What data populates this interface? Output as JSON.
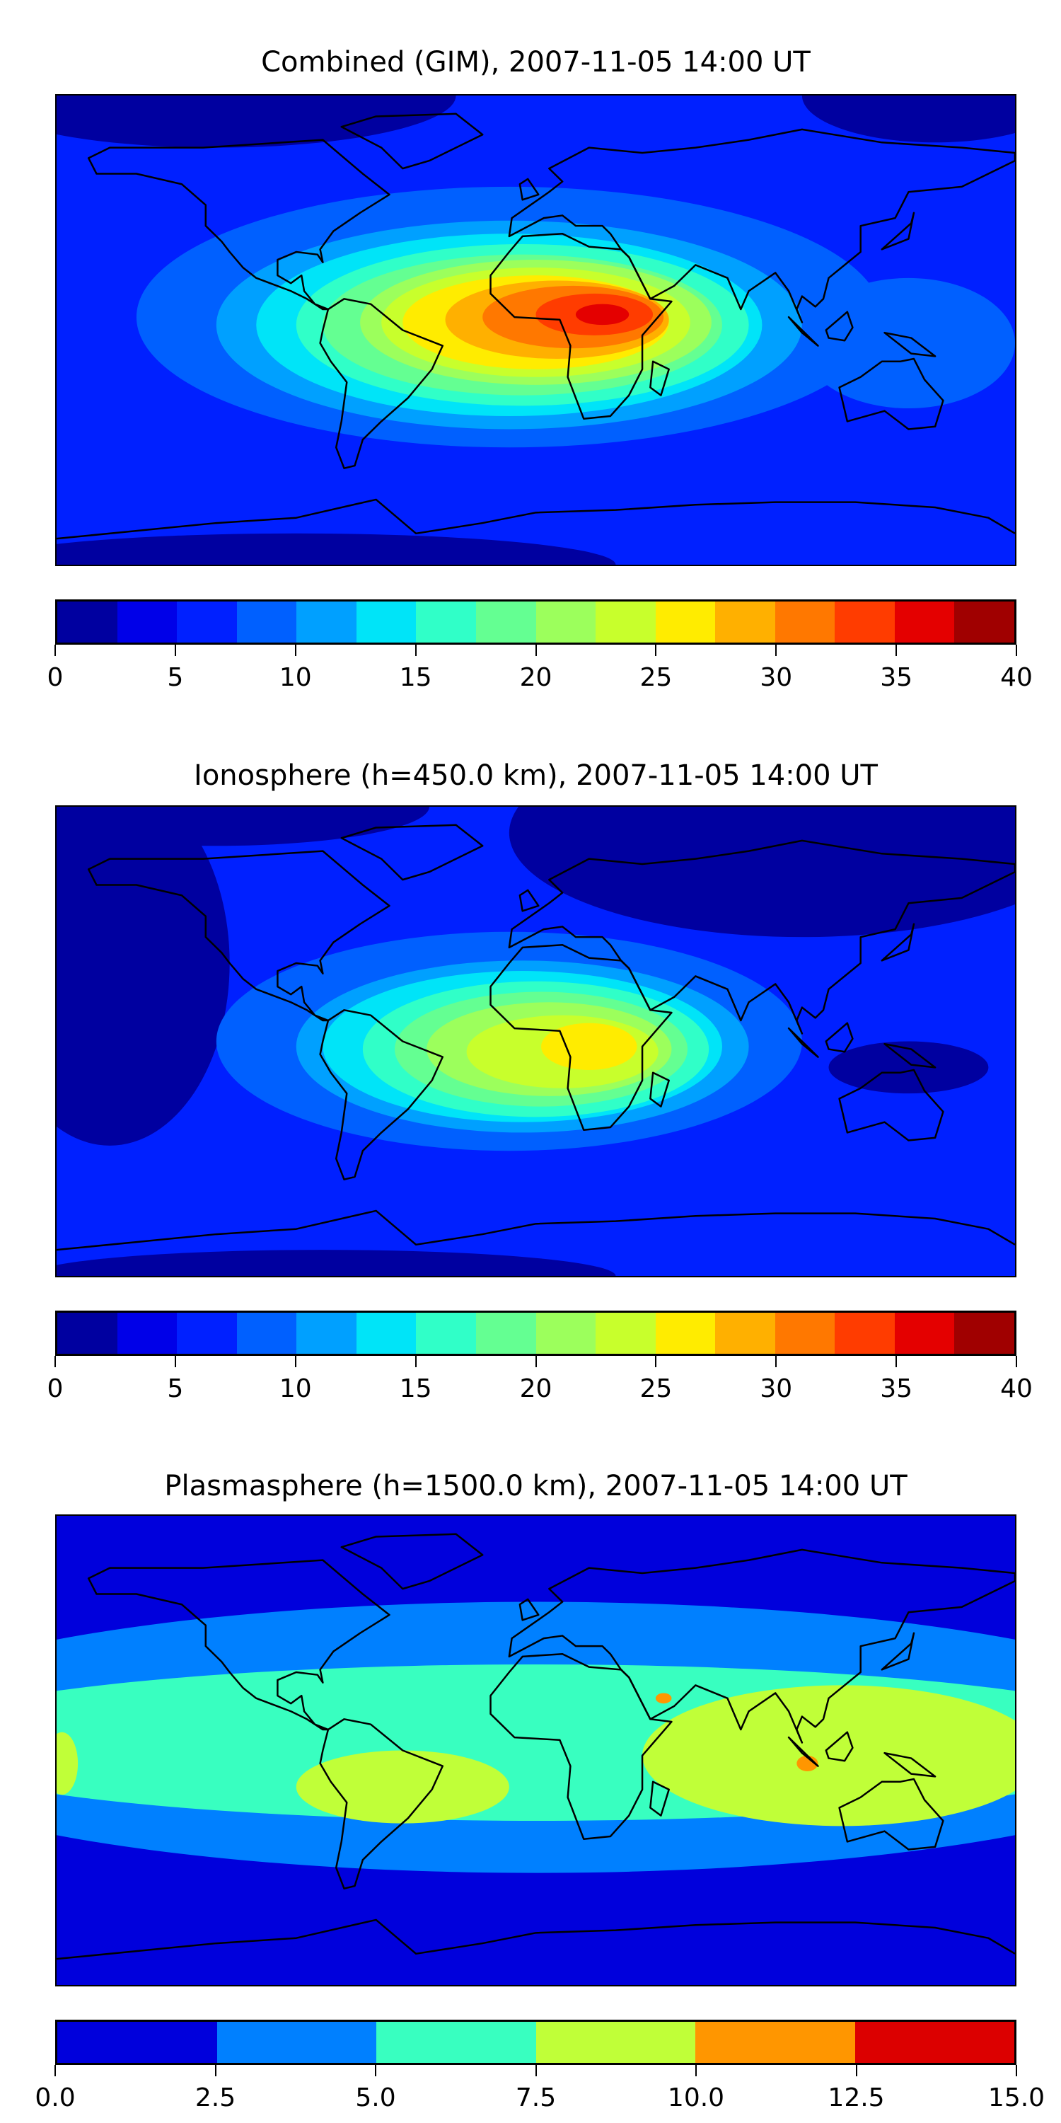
{
  "chart_data": [
    {
      "type": "heatmap",
      "title": "Combined (GIM), 2007-11-05 14:00 UT",
      "xlim": [
        -180,
        180
      ],
      "ylim": [
        -90,
        90
      ],
      "colorbar": {
        "bounds": [
          0,
          2.5,
          5,
          7.5,
          10,
          12.5,
          15,
          17.5,
          20,
          22.5,
          25,
          27.5,
          30,
          32.5,
          35,
          37.5,
          40
        ],
        "colors": [
          "#0000a0",
          "#0000e8",
          "#0020ff",
          "#0060ff",
          "#00a0ff",
          "#00e4f8",
          "#30ffc8",
          "#64ff92",
          "#9cff5c",
          "#c8ff2c",
          "#ffec00",
          "#ffb000",
          "#ff7800",
          "#ff3c00",
          "#e40000",
          "#a00000"
        ],
        "ticks": [
          0,
          5,
          10,
          15,
          20,
          25,
          30,
          35,
          40
        ],
        "tick_labels": [
          "0",
          "5",
          "10",
          "15",
          "20",
          "25",
          "30",
          "35",
          "40"
        ]
      },
      "background_level": 2,
      "regions": [
        {
          "level": 0,
          "lon": -120,
          "lat": 90,
          "rlon": 90,
          "rlat": 20
        },
        {
          "level": 0,
          "lon": 150,
          "lat": 90,
          "rlon": 50,
          "rlat": 18
        },
        {
          "level": 0,
          "lon": -90,
          "lat": -90,
          "rlon": 120,
          "rlat": 12
        },
        {
          "level": 3,
          "lon": -10,
          "lat": 5,
          "rlon": 140,
          "rlat": 50
        },
        {
          "level": 3,
          "lon": 140,
          "lat": -5,
          "rlon": 40,
          "rlat": 25
        },
        {
          "level": 4,
          "lon": -10,
          "lat": 2,
          "rlon": 110,
          "rlat": 40
        },
        {
          "level": 5,
          "lon": -10,
          "lat": 2,
          "rlon": 95,
          "rlat": 35
        },
        {
          "level": 6,
          "lon": -5,
          "lat": 2,
          "rlon": 85,
          "rlat": 31
        },
        {
          "level": 7,
          "lon": -5,
          "lat": 2,
          "rlon": 75,
          "rlat": 27
        },
        {
          "level": 8,
          "lon": 0,
          "lat": 3,
          "rlon": 66,
          "rlat": 24
        },
        {
          "level": 9,
          "lon": 0,
          "lat": 3,
          "rlon": 58,
          "rlat": 21
        },
        {
          "level": 10,
          "lon": 0,
          "lat": 3,
          "rlon": 50,
          "rlat": 18
        },
        {
          "level": 11,
          "lon": 8,
          "lat": 4,
          "rlon": 42,
          "rlat": 15
        },
        {
          "level": 12,
          "lon": 14,
          "lat": 5,
          "rlon": 34,
          "rlat": 12
        },
        {
          "level": 13,
          "lon": 22,
          "lat": 6,
          "rlon": 22,
          "rlat": 8
        },
        {
          "level": 14,
          "lon": 25,
          "lat": 6,
          "rlon": 10,
          "rlat": 4
        }
      ]
    },
    {
      "type": "heatmap",
      "title": "Ionosphere  (h=450.0 km), 2007-11-05 14:00 UT",
      "xlim": [
        -180,
        180
      ],
      "ylim": [
        -90,
        90
      ],
      "colorbar": {
        "bounds": [
          0,
          2.5,
          5,
          7.5,
          10,
          12.5,
          15,
          17.5,
          20,
          22.5,
          25,
          27.5,
          30,
          32.5,
          35,
          37.5,
          40
        ],
        "colors": [
          "#0000a0",
          "#0000e8",
          "#0020ff",
          "#0060ff",
          "#00a0ff",
          "#00e4f8",
          "#30ffc8",
          "#64ff92",
          "#9cff5c",
          "#c8ff2c",
          "#ffec00",
          "#ffb000",
          "#ff7800",
          "#ff3c00",
          "#e40000",
          "#a00000"
        ],
        "ticks": [
          0,
          5,
          10,
          15,
          20,
          25,
          30,
          35,
          40
        ],
        "tick_labels": [
          "0",
          "5",
          "10",
          "15",
          "20",
          "25",
          "30",
          "35",
          "40"
        ]
      },
      "background_level": 2,
      "regions": [
        {
          "level": 0,
          "lon": 100,
          "lat": 80,
          "rlon": 110,
          "rlat": 40
        },
        {
          "level": 0,
          "lon": -160,
          "lat": 30,
          "rlon": 45,
          "rlat": 70
        },
        {
          "level": 0,
          "lon": -120,
          "lat": 90,
          "rlon": 80,
          "rlat": 15
        },
        {
          "level": 0,
          "lon": -80,
          "lat": -90,
          "rlon": 110,
          "rlat": 10
        },
        {
          "level": 0,
          "lon": 140,
          "lat": -10,
          "rlon": 30,
          "rlat": 10
        },
        {
          "level": 3,
          "lon": -10,
          "lat": 0,
          "rlon": 110,
          "rlat": 42
        },
        {
          "level": 4,
          "lon": -5,
          "lat": -2,
          "rlon": 85,
          "rlat": 33
        },
        {
          "level": 5,
          "lon": -5,
          "lat": -2,
          "rlon": 75,
          "rlat": 29
        },
        {
          "level": 6,
          "lon": 0,
          "lat": -3,
          "rlon": 65,
          "rlat": 26
        },
        {
          "level": 7,
          "lon": 2,
          "lat": -3,
          "rlon": 55,
          "rlat": 22
        },
        {
          "level": 8,
          "lon": 5,
          "lat": -3,
          "rlon": 46,
          "rlat": 18
        },
        {
          "level": 9,
          "lon": 10,
          "lat": -4,
          "rlon": 36,
          "rlat": 14
        },
        {
          "level": 10,
          "lon": 20,
          "lat": -2,
          "rlon": 18,
          "rlat": 9
        }
      ]
    },
    {
      "type": "heatmap",
      "title": "Plasmasphere (h=1500.0 km), 2007-11-05 14:00 UT",
      "xlim": [
        -180,
        180
      ],
      "ylim": [
        -90,
        90
      ],
      "colorbar": {
        "bounds": [
          0,
          2.5,
          5,
          7.5,
          10,
          12.5,
          15
        ],
        "colors": [
          "#0000dc",
          "#0080ff",
          "#38ffc0",
          "#c0ff38",
          "#ff9600",
          "#dc0000"
        ],
        "ticks": [
          0,
          2.5,
          5,
          7.5,
          10,
          12.5,
          15
        ],
        "tick_labels": [
          "0.0",
          "2.5",
          "5.0",
          "7.5",
          "10.0",
          "12.5",
          "15.0"
        ]
      },
      "background_level": 0,
      "regions": [
        {
          "level": 1,
          "lon": 0,
          "lat": 5,
          "rlon": 260,
          "rlat": 52
        },
        {
          "level": 2,
          "lon": 0,
          "lat": 3,
          "rlon": 240,
          "rlat": 30
        },
        {
          "level": 3,
          "lon": -50,
          "lat": -14,
          "rlon": 40,
          "rlat": 14
        },
        {
          "level": 3,
          "lon": 115,
          "lat": -2,
          "rlon": 75,
          "rlat": 27
        },
        {
          "level": 3,
          "lon": -178,
          "lat": -5,
          "rlon": 6,
          "rlat": 12
        },
        {
          "level": 4,
          "lon": 48,
          "lat": 20,
          "rlon": 3,
          "rlat": 2
        },
        {
          "level": 4,
          "lon": 102,
          "lat": -5,
          "rlon": 4,
          "rlat": 3
        }
      ]
    }
  ]
}
